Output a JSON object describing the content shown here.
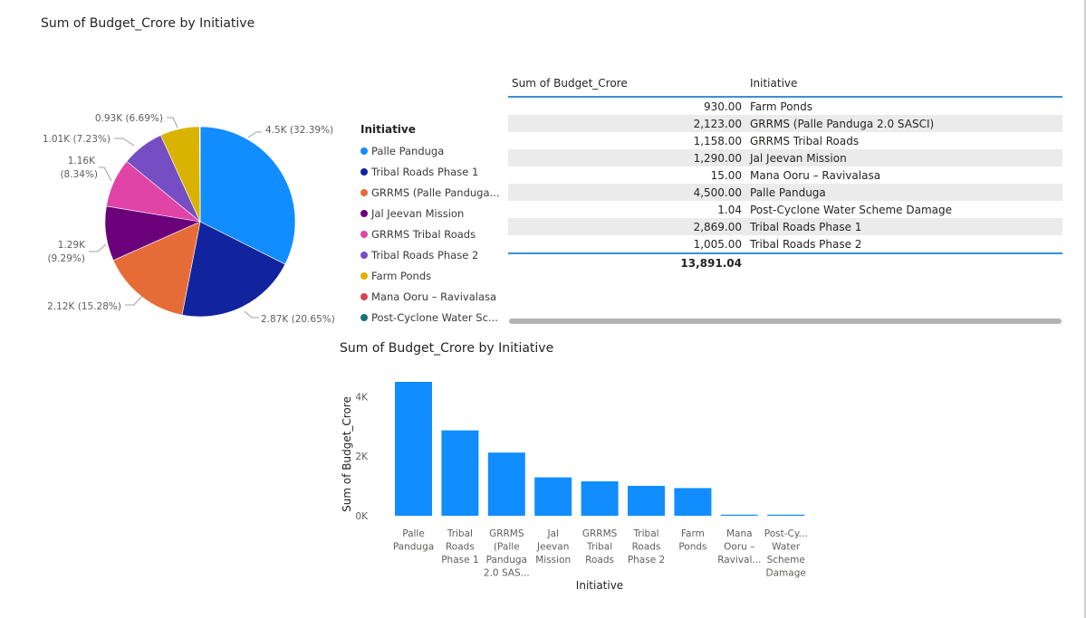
{
  "pie": {
    "title": "Sum of Budget_Crore by Initiative",
    "labels": {
      "palle": "4.5K (32.39%)",
      "tribal1": "2.87K (20.65%)",
      "grrms_palle": "2.12K (15.28%)",
      "jal_l1": "1.29K",
      "jal_l2": "(9.29%)",
      "tribal_roads_l1": "1.16K",
      "tribal_roads_l2": "(8.34%)",
      "tribal2": "1.01K (7.23%)",
      "farm": "0.93K (6.69%)"
    }
  },
  "legend": {
    "title": "Initiative",
    "items": [
      {
        "label": "Palle Panduga",
        "color": "#118DFF"
      },
      {
        "label": "Tribal Roads Phase 1",
        "color": "#12239E"
      },
      {
        "label": "GRRMS (Palle Panduga...",
        "color": "#E66C37"
      },
      {
        "label": "Jal Jeevan Mission",
        "color": "#6B007B"
      },
      {
        "label": "GRRMS Tribal Roads",
        "color": "#E044A7"
      },
      {
        "label": "Tribal Roads Phase 2",
        "color": "#744EC2"
      },
      {
        "label": "Farm Ponds",
        "color": "#D9B300"
      },
      {
        "label": "Mana Ooru – Ravivalasa",
        "color": "#D64550"
      },
      {
        "label": "Post-Cyclone Water Sc...",
        "color": "#197278"
      }
    ]
  },
  "table": {
    "headers": {
      "value": "Sum of Budget_Crore",
      "initiative": "Initiative"
    },
    "rows": [
      {
        "value": "930.00",
        "initiative": "Farm Ponds"
      },
      {
        "value": "2,123.00",
        "initiative": "GRRMS (Palle Panduga 2.0 SASCI)"
      },
      {
        "value": "1,158.00",
        "initiative": "GRRMS Tribal Roads"
      },
      {
        "value": "1,290.00",
        "initiative": "Jal Jeevan Mission"
      },
      {
        "value": "15.00",
        "initiative": "Mana Ooru – Ravivalasa"
      },
      {
        "value": "4,500.00",
        "initiative": "Palle Panduga"
      },
      {
        "value": "1.04",
        "initiative": "Post-Cyclone Water Scheme Damage"
      },
      {
        "value": "2,869.00",
        "initiative": "Tribal Roads Phase 1"
      },
      {
        "value": "1,005.00",
        "initiative": "Tribal Roads Phase 2"
      }
    ],
    "total": "13,891.04"
  },
  "bar": {
    "title": "Sum of Budget_Crore by Initiative"
  },
  "chart_data": [
    {
      "type": "pie",
      "title": "Sum of Budget_Crore by Initiative",
      "categories": [
        "Palle Panduga",
        "Tribal Roads Phase 1",
        "GRRMS (Palle Panduga 2.0 SASCI)",
        "Jal Jeevan Mission",
        "GRRMS Tribal Roads",
        "Tribal Roads Phase 2",
        "Farm Ponds",
        "Mana Ooru – Ravivalasa",
        "Post-Cyclone Water Scheme Damage"
      ],
      "values": [
        4500,
        2869,
        2123,
        1290,
        1158,
        1005,
        930,
        15,
        1.04
      ],
      "colors": [
        "#118DFF",
        "#12239E",
        "#E66C37",
        "#6B007B",
        "#E044A7",
        "#744EC2",
        "#D9B300",
        "#D64550",
        "#197278"
      ],
      "legend": "right"
    },
    {
      "type": "bar",
      "title": "Sum of Budget_Crore by Initiative",
      "xlabel": "Initiative",
      "ylabel": "Sum of Budget_Crore",
      "ylim": [
        0,
        4500
      ],
      "yticks": [
        0,
        2000,
        4000
      ],
      "ytick_labels": [
        "0K",
        "2K",
        "4K"
      ],
      "bar_color": "#118DFF",
      "categories": [
        [
          "Palle",
          "Panduga"
        ],
        [
          "Tribal",
          "Roads",
          "Phase 1"
        ],
        [
          "GRRMS",
          "(Palle",
          "Panduga",
          "2.0 SAS..."
        ],
        [
          "Jal",
          "Jeevan",
          "Mission"
        ],
        [
          "GRRMS",
          "Tribal",
          "Roads"
        ],
        [
          "Tribal",
          "Roads",
          "Phase 2"
        ],
        [
          "Farm",
          "Ponds"
        ],
        [
          "Mana",
          "Ooru –",
          "Ravival..."
        ],
        [
          "Post-Cy...",
          "Water",
          "Scheme",
          "Damage"
        ]
      ],
      "values": [
        4500,
        2869,
        2123,
        1290,
        1158,
        1005,
        930,
        15,
        1.04
      ]
    }
  ]
}
